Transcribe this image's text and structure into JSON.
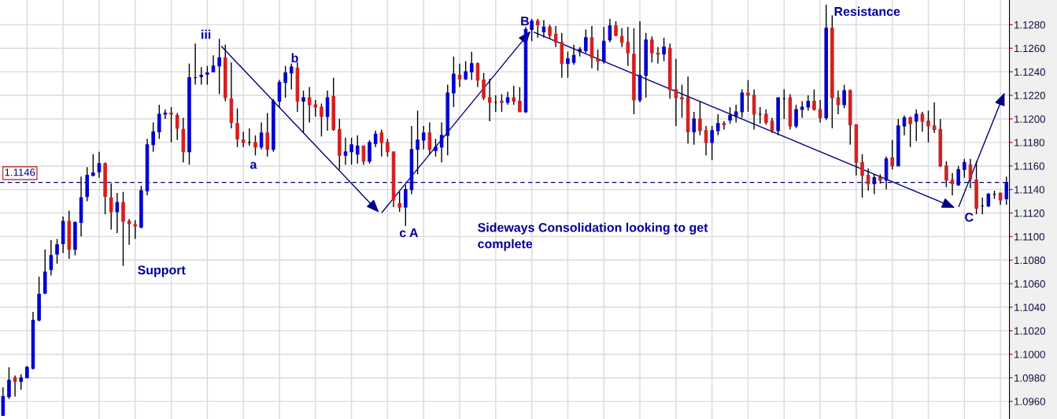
{
  "chart_data": {
    "type": "candlestick",
    "categories": [
      null,
      null,
      null,
      null,
      null,
      null,
      null,
      null,
      null,
      null,
      null,
      null,
      null,
      null,
      null,
      null,
      null,
      null,
      null,
      null,
      null,
      null,
      null,
      null,
      null,
      null,
      null,
      null,
      null,
      null,
      null,
      null,
      null,
      null,
      null,
      null,
      null,
      null,
      null,
      null,
      null,
      null,
      null,
      null,
      null,
      null,
      null,
      null,
      null,
      null,
      null,
      null,
      null,
      null,
      null,
      null,
      null,
      null,
      null,
      null,
      null,
      null,
      null,
      null,
      null,
      null,
      null,
      null,
      null,
      null,
      null,
      null,
      null,
      null,
      null,
      null,
      null,
      null,
      null,
      null,
      null,
      null,
      null,
      null,
      null,
      null,
      null,
      null,
      null,
      null,
      null,
      null,
      null,
      null,
      null,
      null,
      null,
      null,
      null,
      null,
      null,
      null,
      null,
      null,
      null,
      null,
      null,
      null,
      null,
      null,
      null,
      null,
      null,
      null,
      null,
      null,
      null,
      null,
      null,
      null,
      null,
      null,
      null,
      null,
      null,
      null,
      null,
      null,
      null,
      null,
      null,
      null,
      null,
      null,
      null,
      null,
      null,
      null,
      null,
      null,
      null,
      null,
      null,
      null,
      null,
      null,
      null,
      null,
      null,
      null,
      null,
      null,
      null,
      null,
      null,
      null,
      null,
      null,
      null,
      null,
      null,
      null,
      null,
      null,
      null,
      null,
      null,
      null
    ],
    "ohlc": [
      [
        1.0948,
        1.0972,
        1.0948,
        1.0964
      ],
      [
        1.0964,
        1.0989,
        1.0962,
        1.0978
      ],
      [
        1.098,
        1.0982,
        1.0964,
        1.0977
      ],
      [
        1.0977,
        1.0983,
        1.097,
        1.098
      ],
      [
        1.098,
        1.099,
        1.098,
        1.0989
      ],
      [
        1.0988,
        1.1036,
        1.0987,
        1.1029
      ],
      [
        1.1029,
        1.1066,
        1.1028,
        1.1051
      ],
      [
        1.1052,
        1.1089,
        1.1051,
        1.107
      ],
      [
        1.1072,
        1.1097,
        1.1067,
        1.1084
      ],
      [
        1.1085,
        1.1098,
        1.1077,
        1.1093
      ],
      [
        1.1094,
        1.1117,
        1.1086,
        1.1113
      ],
      [
        1.1113,
        1.1122,
        1.1081,
        1.1089
      ],
      [
        1.1089,
        1.1113,
        1.1084,
        1.1112
      ],
      [
        1.1112,
        1.1151,
        1.11,
        1.1133
      ],
      [
        1.1134,
        1.1159,
        1.113,
        1.1152
      ],
      [
        1.1152,
        1.117,
        1.1151,
        1.1154
      ],
      [
        1.1155,
        1.1172,
        1.115,
        1.1162
      ],
      [
        1.1162,
        1.1163,
        1.1119,
        1.1134
      ],
      [
        1.1133,
        1.1145,
        1.1106,
        1.1121
      ],
      [
        1.1121,
        1.1137,
        1.1103,
        1.1129
      ],
      [
        1.1129,
        1.1138,
        1.1075,
        1.1113
      ],
      [
        1.1113,
        1.1115,
        1.1093,
        1.1111
      ],
      [
        1.111,
        1.1114,
        1.1098,
        1.1109
      ],
      [
        1.1108,
        1.1143,
        1.1107,
        1.1139
      ],
      [
        1.1139,
        1.1183,
        1.1135,
        1.1178
      ],
      [
        1.1178,
        1.1197,
        1.1172,
        1.1189
      ],
      [
        1.1189,
        1.1212,
        1.1183,
        1.1204
      ],
      [
        1.1204,
        1.1208,
        1.12,
        1.1205
      ],
      [
        1.1205,
        1.121,
        1.118,
        1.1204
      ],
      [
        1.1203,
        1.1205,
        1.1182,
        1.1192
      ],
      [
        1.1191,
        1.1201,
        1.1163,
        1.1172
      ],
      [
        1.1172,
        1.1247,
        1.1161,
        1.1235
      ],
      [
        1.1235,
        1.1264,
        1.1229,
        1.1235
      ],
      [
        1.1236,
        1.1244,
        1.1229,
        1.1237
      ],
      [
        1.1238,
        1.1245,
        1.1229,
        1.1239
      ],
      [
        1.124,
        1.1254,
        1.124,
        1.1245
      ],
      [
        1.1245,
        1.1268,
        1.1221,
        1.1252
      ],
      [
        1.1252,
        1.1263,
        1.1215,
        1.1218
      ],
      [
        1.1217,
        1.1248,
        1.1192,
        1.1197
      ],
      [
        1.1196,
        1.1209,
        1.1176,
        1.1183
      ],
      [
        1.1182,
        1.1189,
        1.1176,
        1.118
      ],
      [
        1.118,
        1.1192,
        1.1177,
        1.118
      ],
      [
        1.118,
        1.1186,
        1.1169,
        1.1176
      ],
      [
        1.1176,
        1.1197,
        1.1174,
        1.1188
      ],
      [
        1.1188,
        1.1205,
        1.1168,
        1.1174
      ],
      [
        1.1174,
        1.1217,
        1.1172,
        1.1215
      ],
      [
        1.1215,
        1.1233,
        1.121,
        1.1231
      ],
      [
        1.1231,
        1.1245,
        1.1218,
        1.1239
      ],
      [
        1.1239,
        1.1247,
        1.1225,
        1.1244
      ],
      [
        1.1243,
        1.1248,
        1.1206,
        1.1215
      ],
      [
        1.1215,
        1.1224,
        1.1188,
        1.1218
      ],
      [
        1.1218,
        1.1227,
        1.1197,
        1.1212
      ],
      [
        1.1212,
        1.1216,
        1.1202,
        1.121
      ],
      [
        1.121,
        1.1213,
        1.1185,
        1.1202
      ],
      [
        1.1202,
        1.1224,
        1.119,
        1.1218
      ],
      [
        1.1219,
        1.1235,
        1.119,
        1.1191
      ],
      [
        1.1191,
        1.12,
        1.1157,
        1.1169
      ],
      [
        1.1169,
        1.1184,
        1.1161,
        1.1172
      ],
      [
        1.1172,
        1.1184,
        1.1161,
        1.1178
      ],
      [
        1.117,
        1.1186,
        1.1162,
        1.1177
      ],
      [
        1.1177,
        1.1177,
        1.1161,
        1.1164
      ],
      [
        1.1164,
        1.1182,
        1.1162,
        1.118
      ],
      [
        1.1179,
        1.119,
        1.1176,
        1.1187
      ],
      [
        1.1188,
        1.1191,
        1.1168,
        1.118
      ],
      [
        1.118,
        1.1183,
        1.1168,
        1.1172
      ],
      [
        1.1172,
        1.1172,
        1.1125,
        1.1131
      ],
      [
        1.1128,
        1.1138,
        1.1121,
        1.1125
      ],
      [
        1.1125,
        1.1144,
        1.1109,
        1.114
      ],
      [
        1.114,
        1.1194,
        1.1136,
        1.1174
      ],
      [
        1.1174,
        1.1207,
        1.1153,
        1.1182
      ],
      [
        1.1182,
        1.1194,
        1.1174,
        1.1188
      ],
      [
        1.1188,
        1.1197,
        1.117,
        1.1174
      ],
      [
        1.1173,
        1.1183,
        1.1168,
        1.1176
      ],
      [
        1.1176,
        1.1197,
        1.1163,
        1.1186
      ],
      [
        1.1186,
        1.1229,
        1.1169,
        1.1222
      ],
      [
        1.1222,
        1.1253,
        1.121,
        1.1238
      ],
      [
        1.1237,
        1.1247,
        1.1227,
        1.1234
      ],
      [
        1.1234,
        1.1249,
        1.1233,
        1.124
      ],
      [
        1.124,
        1.1257,
        1.1233,
        1.1247
      ],
      [
        1.1247,
        1.1248,
        1.1227,
        1.1233
      ],
      [
        1.1233,
        1.1239,
        1.1216,
        1.1218
      ],
      [
        1.1218,
        1.1234,
        1.1198,
        1.1214
      ],
      [
        1.1214,
        1.122,
        1.1206,
        1.1214
      ],
      [
        1.1215,
        1.1221,
        1.1206,
        1.1214
      ],
      [
        1.1214,
        1.1223,
        1.1212,
        1.1218
      ],
      [
        1.1218,
        1.1228,
        1.1212,
        1.1215
      ],
      [
        1.1215,
        1.1227,
        1.1206,
        1.1206
      ],
      [
        1.1206,
        1.1278,
        1.1205,
        1.1276
      ],
      [
        1.1276,
        1.1285,
        1.1266,
        1.1283
      ],
      [
        1.1283,
        1.1285,
        1.1269,
        1.128
      ],
      [
        1.1274,
        1.1284,
        1.1269,
        1.1278
      ],
      [
        1.1278,
        1.128,
        1.1268,
        1.1271
      ],
      [
        1.1272,
        1.1279,
        1.1261,
        1.1265
      ],
      [
        1.1265,
        1.1273,
        1.1235,
        1.1247
      ],
      [
        1.1247,
        1.1257,
        1.1235,
        1.1251
      ],
      [
        1.1248,
        1.1263,
        1.1246,
        1.1254
      ],
      [
        1.1257,
        1.1261,
        1.1253,
        1.1259
      ],
      [
        1.1258,
        1.1276,
        1.1256,
        1.1269
      ],
      [
        1.1269,
        1.1279,
        1.1243,
        1.1252
      ],
      [
        1.1251,
        1.1259,
        1.1241,
        1.1249
      ],
      [
        1.1249,
        1.1278,
        1.1247,
        1.1266
      ],
      [
        1.1267,
        1.1285,
        1.1265,
        1.1279
      ],
      [
        1.1279,
        1.1283,
        1.127,
        1.1271
      ],
      [
        1.127,
        1.1277,
        1.1261,
        1.1265
      ],
      [
        1.1265,
        1.1278,
        1.1245,
        1.1256
      ],
      [
        1.1255,
        1.1277,
        1.1204,
        1.1216
      ],
      [
        1.1216,
        1.1283,
        1.1214,
        1.1237
      ],
      [
        1.1237,
        1.1273,
        1.1218,
        1.1267
      ],
      [
        1.1267,
        1.127,
        1.1248,
        1.1256
      ],
      [
        1.1256,
        1.1261,
        1.1247,
        1.1255
      ],
      [
        1.1255,
        1.1269,
        1.1249,
        1.1261
      ],
      [
        1.126,
        1.1264,
        1.1217,
        1.1225
      ],
      [
        1.1225,
        1.1251,
        1.1194,
        1.1218
      ],
      [
        1.1218,
        1.1229,
        1.1201,
        1.1217
      ],
      [
        1.1218,
        1.1236,
        1.1179,
        1.1189
      ],
      [
        1.1189,
        1.1206,
        1.1178,
        1.12
      ],
      [
        1.12,
        1.1215,
        1.1186,
        1.119
      ],
      [
        1.119,
        1.1194,
        1.1169,
        1.118
      ],
      [
        1.118,
        1.1194,
        1.1165,
        1.119
      ],
      [
        1.119,
        1.1204,
        1.1186,
        1.1196
      ],
      [
        1.1196,
        1.1198,
        1.1191,
        1.1195
      ],
      [
        1.1199,
        1.121,
        1.1196,
        1.1203
      ],
      [
        1.1202,
        1.1212,
        1.1197,
        1.1206
      ],
      [
        1.1206,
        1.1225,
        1.1201,
        1.1222
      ],
      [
        1.1222,
        1.1233,
        1.1206,
        1.122
      ],
      [
        1.122,
        1.1225,
        1.1191,
        1.1204
      ],
      [
        1.1204,
        1.121,
        1.1196,
        1.1204
      ],
      [
        1.1204,
        1.1208,
        1.1195,
        1.1197
      ],
      [
        1.1198,
        1.1201,
        1.1188,
        1.119
      ],
      [
        1.119,
        1.1218,
        1.1186,
        1.1218
      ],
      [
        1.1217,
        1.1225,
        1.12,
        1.1217
      ],
      [
        1.1218,
        1.1221,
        1.1191,
        1.1194
      ],
      [
        1.1194,
        1.1212,
        1.1192,
        1.1208
      ],
      [
        1.1208,
        1.1215,
        1.1201,
        1.121
      ],
      [
        1.121,
        1.122,
        1.1207,
        1.1215
      ],
      [
        1.1215,
        1.1225,
        1.1207,
        1.1208
      ],
      [
        1.1208,
        1.1216,
        1.1197,
        1.1201
      ],
      [
        1.1201,
        1.1297,
        1.1199,
        1.1277
      ],
      [
        1.1277,
        1.1288,
        1.1192,
        1.1218
      ],
      [
        1.1218,
        1.1224,
        1.1204,
        1.1212
      ],
      [
        1.1212,
        1.1229,
        1.1209,
        1.1224
      ],
      [
        1.1224,
        1.1225,
        1.1178,
        1.1195
      ],
      [
        1.1195,
        1.1195,
        1.1152,
        1.1163
      ],
      [
        1.1163,
        1.117,
        1.1133,
        1.1152
      ],
      [
        1.1152,
        1.1158,
        1.1139,
        1.1145
      ],
      [
        1.1145,
        1.1153,
        1.1136,
        1.115
      ],
      [
        1.115,
        1.1153,
        1.1145,
        1.1148
      ],
      [
        1.1148,
        1.1168,
        1.114,
        1.1166
      ],
      [
        1.1167,
        1.1182,
        1.1157,
        1.116
      ],
      [
        1.116,
        1.12,
        1.116,
        1.1194
      ],
      [
        1.1194,
        1.1203,
        1.1186,
        1.1201
      ],
      [
        1.1201,
        1.1202,
        1.1176,
        1.1196
      ],
      [
        1.1198,
        1.1208,
        1.1181,
        1.1204
      ],
      [
        1.1204,
        1.1206,
        1.1189,
        1.1198
      ],
      [
        1.1198,
        1.1207,
        1.118,
        1.1194
      ],
      [
        1.1194,
        1.1214,
        1.1188,
        1.1191
      ],
      [
        1.1191,
        1.12,
        1.1159,
        1.116
      ],
      [
        1.116,
        1.1164,
        1.1142,
        1.1148
      ],
      [
        1.1148,
        1.1154,
        1.1135,
        1.1145
      ],
      [
        1.1144,
        1.116,
        1.1143,
        1.1157
      ],
      [
        1.1157,
        1.1166,
        1.115,
        1.1163
      ],
      [
        1.1161,
        1.1166,
        1.1141,
        1.1149
      ],
      [
        1.1148,
        1.1164,
        1.1119,
        1.1124
      ],
      [
        1.1126,
        1.1133,
        1.1119,
        1.1126
      ],
      [
        1.1126,
        1.1137,
        1.1125,
        1.1136
      ],
      [
        1.1136,
        1.1139,
        1.1132,
        1.1136
      ],
      [
        1.1137,
        1.1137,
        1.1127,
        1.1131
      ],
      [
        1.1132,
        1.1151,
        1.1127,
        1.1146
      ]
    ],
    "colors": [
      "#0000cc",
      "#0000cc",
      "#d42020",
      "#0000cc",
      "#0000cc",
      "#0000cc",
      "#0000cc",
      "#0000cc",
      "#0000cc",
      "#0000cc",
      "#0000cc",
      "#d42020",
      "#0000cc",
      "#0000cc",
      "#0000cc",
      "#0000cc",
      "#0000cc",
      "#d42020",
      "#d42020",
      "#0000cc",
      "#d42020",
      "#d42020",
      "#d42020",
      "#0000cc",
      "#0000cc",
      "#0000cc",
      "#0000cc",
      "#0000cc",
      "#d42020",
      "#d42020",
      "#d42020",
      "#0000cc",
      "#000000",
      "#0000cc",
      "#0000cc",
      "#0000cc",
      "#0000cc",
      "#d42020",
      "#d42020",
      "#d42020",
      "#d42020",
      "#000000",
      "#d42020",
      "#0000cc",
      "#d42020",
      "#0000cc",
      "#0000cc",
      "#0000cc",
      "#0000cc",
      "#d42020",
      "#0000cc",
      "#d42020",
      "#d42020",
      "#d42020",
      "#0000cc",
      "#d42020",
      "#d42020",
      "#0000cc",
      "#0000cc",
      "#0000cc",
      "#d42020",
      "#0000cc",
      "#0000cc",
      "#d42020",
      "#d42020",
      "#d42020",
      "#d42020",
      "#0000cc",
      "#0000cc",
      "#0000cc",
      "#0000cc",
      "#d42020",
      "#0000cc",
      "#0000cc",
      "#0000cc",
      "#0000cc",
      "#d42020",
      "#0000cc",
      "#0000cc",
      "#d42020",
      "#d42020",
      "#d42020",
      "#000000",
      "#d42020",
      "#0000cc",
      "#d42020",
      "#d42020",
      "#0000cc",
      "#0000cc",
      "#d42020",
      "#0000cc",
      "#d42020",
      "#d42020",
      "#d42020",
      "#0000cc",
      "#0000cc",
      "#0000cc",
      "#0000cc",
      "#d42020",
      "#d42020",
      "#0000cc",
      "#0000cc",
      "#d42020",
      "#d42020",
      "#d42020",
      "#d42020",
      "#0000cc",
      "#0000cc",
      "#d42020",
      "#d42020",
      "#0000cc",
      "#d42020",
      "#d42020",
      "#d42020",
      "#d42020",
      "#0000cc",
      "#d42020",
      "#d42020",
      "#0000cc",
      "#0000cc",
      "#d42020",
      "#0000cc",
      "#0000cc",
      "#0000cc",
      "#d42020",
      "#d42020",
      "#000000",
      "#d42020",
      "#d42020",
      "#0000cc",
      "#000000",
      "#d42020",
      "#0000cc",
      "#0000cc",
      "#0000cc",
      "#d42020",
      "#d42020",
      "#0000cc",
      "#d42020",
      "#d42020",
      "#0000cc",
      "#d42020",
      "#d42020",
      "#d42020",
      "#d42020",
      "#0000cc",
      "#d42020",
      "#0000cc",
      "#d42020",
      "#0000cc",
      "#0000cc",
      "#d42020",
      "#0000cc",
      "#d42020",
      "#d42020",
      "#d42020",
      "#d42020",
      "#d42020",
      "#d42020",
      "#0000cc",
      "#0000cc",
      "#d42020",
      "#d42020",
      "#000000",
      "#0000cc",
      "#000000",
      "#d42020",
      "#0000cc"
    ],
    "ylim": [
      1.0945,
      1.1301
    ],
    "yticks": [
      {
        "value": 1.096,
        "label": "1.0960"
      },
      {
        "value": 1.098,
        "label": "1.0980"
      },
      {
        "value": 1.1,
        "label": "1.1000"
      },
      {
        "value": 1.102,
        "label": "1.1020"
      },
      {
        "value": 1.104,
        "label": "1.1040"
      },
      {
        "value": 1.106,
        "label": "1.1060"
      },
      {
        "value": 1.108,
        "label": "1.1080"
      },
      {
        "value": 1.11,
        "label": "1.1100"
      },
      {
        "value": 1.112,
        "label": "1.1120"
      },
      {
        "value": 1.114,
        "label": "1.1140"
      },
      {
        "value": 1.116,
        "label": "1.1160"
      },
      {
        "value": 1.118,
        "label": "1.1180"
      },
      {
        "value": 1.12,
        "label": "1.1200"
      },
      {
        "value": 1.122,
        "label": "1.1220"
      },
      {
        "value": 1.124,
        "label": "1.1240"
      },
      {
        "value": 1.126,
        "label": "1.1260"
      },
      {
        "value": 1.128,
        "label": "1.1280"
      }
    ],
    "ref_lines": [
      {
        "axis": "y",
        "value": 1.1146,
        "label": "1.1146",
        "color": "#000080",
        "line_style": "dashed"
      }
    ],
    "annotations": [
      "iii",
      "a",
      "b",
      "c A",
      "B",
      "Support",
      "Resistance",
      "C",
      "Sideways Consolidation looking to get\ncomplete"
    ],
    "grid": true,
    "tick_labels": "y"
  }
}
